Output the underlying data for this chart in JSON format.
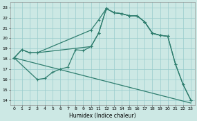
{
  "xlabel": "Humidex (Indice chaleur)",
  "bg_color": "#cce8e4",
  "grid_color": "#99cccc",
  "line_color": "#2e7d6e",
  "xlim": [
    -0.5,
    23.5
  ],
  "ylim": [
    13.5,
    23.5
  ],
  "xticks": [
    0,
    1,
    2,
    3,
    4,
    5,
    6,
    7,
    8,
    9,
    10,
    11,
    12,
    13,
    14,
    15,
    16,
    17,
    18,
    19,
    20,
    21,
    22,
    23
  ],
  "yticks": [
    14,
    15,
    16,
    17,
    18,
    19,
    20,
    21,
    22,
    23
  ],
  "line1_x": [
    0,
    1,
    2,
    3,
    10,
    11,
    12,
    13,
    14,
    15,
    16,
    17,
    18,
    19,
    20
  ],
  "line1_y": [
    18.1,
    18.9,
    18.6,
    18.6,
    20.8,
    21.8,
    22.9,
    22.5,
    22.4,
    22.2,
    22.2,
    21.6,
    20.5,
    20.3,
    20.2
  ],
  "line2_x": [
    0,
    1,
    2,
    3,
    10,
    11,
    12,
    13,
    14,
    15,
    16,
    17,
    18,
    19,
    20,
    21,
    22,
    23
  ],
  "line2_y": [
    18.1,
    18.9,
    18.6,
    18.6,
    19.2,
    20.5,
    22.9,
    22.5,
    22.4,
    22.2,
    22.2,
    21.6,
    20.5,
    20.3,
    20.2,
    17.5,
    15.5,
    14.0
  ],
  "line3_x": [
    0,
    3,
    4,
    5,
    6,
    7,
    8,
    9,
    10,
    11,
    12,
    13,
    14,
    15,
    16,
    17,
    18,
    19,
    20,
    21,
    22,
    23
  ],
  "line3_y": [
    18.1,
    16.0,
    16.1,
    16.7,
    17.0,
    17.2,
    18.9,
    18.8,
    19.2,
    20.5,
    22.9,
    22.5,
    22.4,
    22.2,
    22.2,
    21.6,
    20.5,
    20.3,
    20.2,
    17.5,
    15.5,
    14.0
  ],
  "line4_x": [
    0,
    23
  ],
  "line4_y": [
    18.1,
    13.7
  ],
  "marker": "+"
}
